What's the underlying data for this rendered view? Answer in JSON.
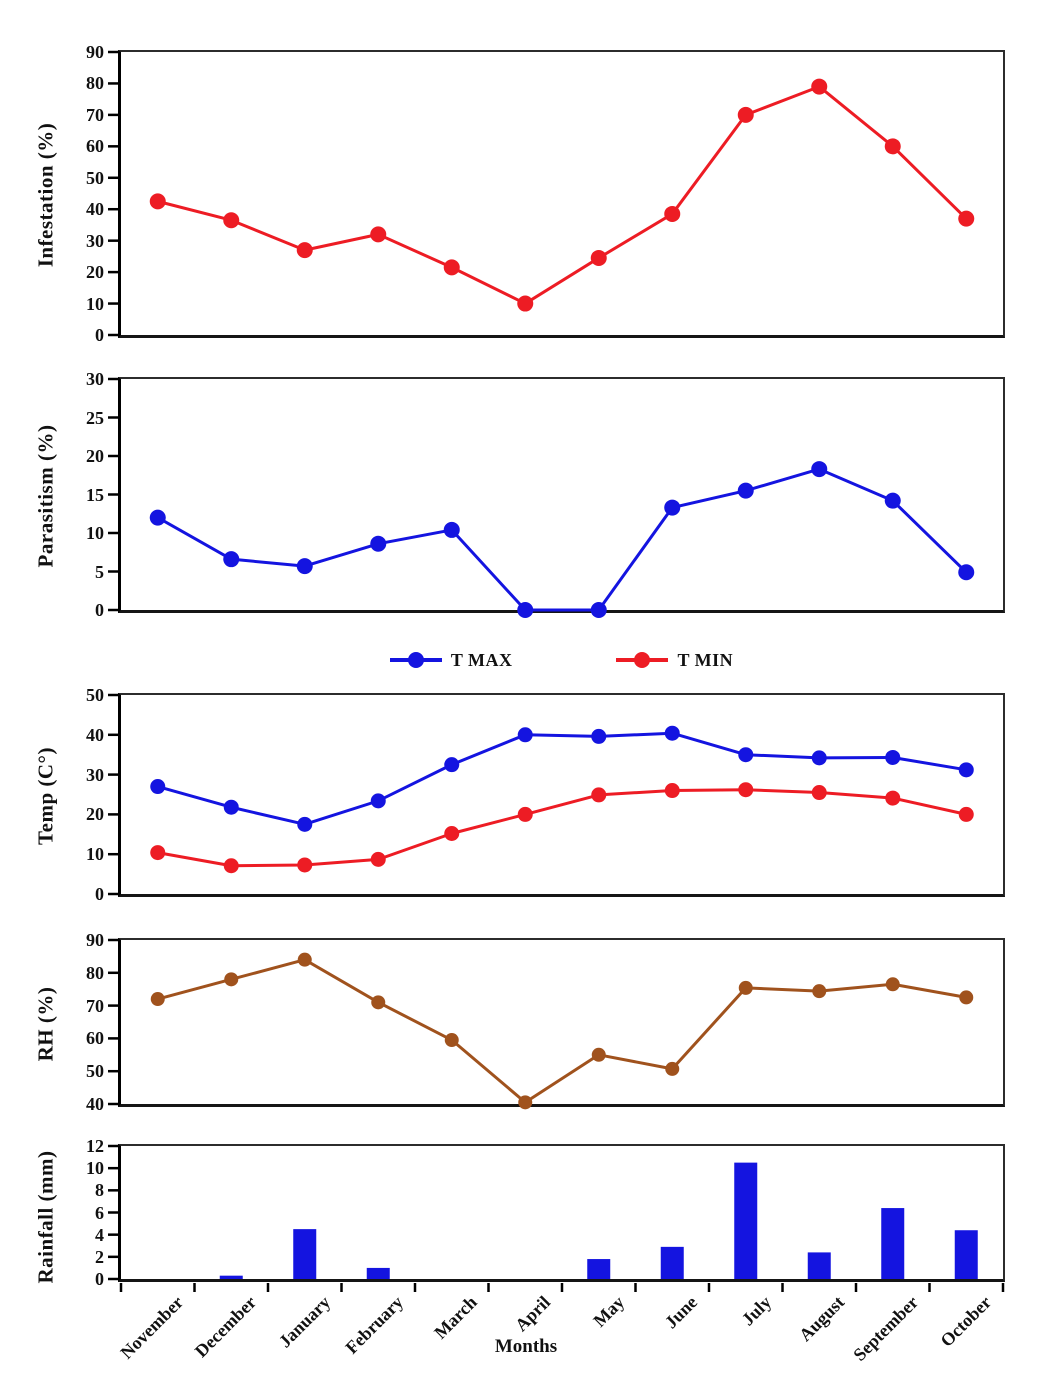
{
  "figure": {
    "xlabel": "Months",
    "months": [
      "November",
      "December",
      "January",
      "February",
      "March",
      "April",
      "May",
      "June",
      "July",
      "August",
      "September",
      "October"
    ]
  },
  "legend": {
    "items": [
      {
        "label": "T MAX",
        "color": "#1414E0"
      },
      {
        "label": "T MIN",
        "color": "#ED1C24"
      }
    ]
  },
  "colors": {
    "red": "#ED1C24",
    "blue": "#1414E0",
    "brown": "#A0521D",
    "axis": "#000000"
  },
  "chart_data": [
    {
      "type": "line",
      "title": "Infestation",
      "ylabel": "Infestation (%)",
      "ylim": [
        0,
        90
      ],
      "ytick_step": 10,
      "grid": false,
      "categories": [
        "November",
        "December",
        "January",
        "February",
        "March",
        "April",
        "May",
        "June",
        "July",
        "August",
        "September",
        "October"
      ],
      "series": [
        {
          "name": "Infestation (%)",
          "color": "#ED1C24",
          "values": [
            42.5,
            36.5,
            27,
            32,
            21.5,
            10,
            24.5,
            38.5,
            70,
            79,
            60,
            37
          ]
        }
      ]
    },
    {
      "type": "line",
      "title": "Parasitism",
      "ylabel": "Parasitism (%)",
      "ylim": [
        0,
        30
      ],
      "ytick_step": 5,
      "grid": false,
      "categories": [
        "November",
        "December",
        "January",
        "February",
        "March",
        "April",
        "May",
        "June",
        "July",
        "August",
        "September",
        "October"
      ],
      "series": [
        {
          "name": "Parasitism (%)",
          "color": "#1414E0",
          "values": [
            12,
            6.6,
            5.7,
            8.6,
            10.4,
            0,
            0,
            13.3,
            15.5,
            18.3,
            14.2,
            4.9
          ]
        }
      ]
    },
    {
      "type": "line",
      "title": "Temperature",
      "ylabel": "Temp (C°)",
      "ylim": [
        0,
        50
      ],
      "ytick_step": 10,
      "grid": false,
      "legend_position": "above",
      "categories": [
        "November",
        "December",
        "January",
        "February",
        "March",
        "April",
        "May",
        "June",
        "July",
        "August",
        "September",
        "October"
      ],
      "series": [
        {
          "name": "T MAX",
          "color": "#1414E0",
          "values": [
            27,
            21.8,
            17.5,
            23.4,
            32.5,
            40,
            39.6,
            40.4,
            35,
            34.2,
            34.3,
            31.2
          ]
        },
        {
          "name": "T MIN",
          "color": "#ED1C24",
          "values": [
            10.4,
            7.1,
            7.3,
            8.7,
            15.2,
            20,
            24.9,
            26,
            26.2,
            25.5,
            24.1,
            20
          ]
        }
      ]
    },
    {
      "type": "line",
      "title": "Relative Humidity",
      "ylabel": "RH (%)",
      "ylim": [
        40,
        90
      ],
      "ytick_step": 10,
      "grid": false,
      "categories": [
        "November",
        "December",
        "January",
        "February",
        "March",
        "April",
        "May",
        "June",
        "July",
        "August",
        "September",
        "October"
      ],
      "series": [
        {
          "name": "RH (%)",
          "color": "#A0521D",
          "values": [
            72,
            78,
            84,
            71,
            59.5,
            40.5,
            55,
            50.7,
            75.4,
            74.4,
            76.5,
            72.5
          ]
        }
      ]
    },
    {
      "type": "bar",
      "title": "Rainfall",
      "ylabel": "Rainfall (mm)",
      "xlabel": "Months",
      "ylim": [
        0,
        12
      ],
      "ytick_step": 2,
      "grid": false,
      "categories": [
        "November",
        "December",
        "January",
        "February",
        "March",
        "April",
        "May",
        "June",
        "July",
        "August",
        "September",
        "October"
      ],
      "series": [
        {
          "name": "Rainfall (mm)",
          "color": "#1414E0",
          "values": [
            0,
            0.3,
            4.5,
            1,
            0,
            0,
            1.8,
            2.9,
            10.5,
            2.4,
            6.4,
            4.4
          ]
        }
      ]
    }
  ]
}
